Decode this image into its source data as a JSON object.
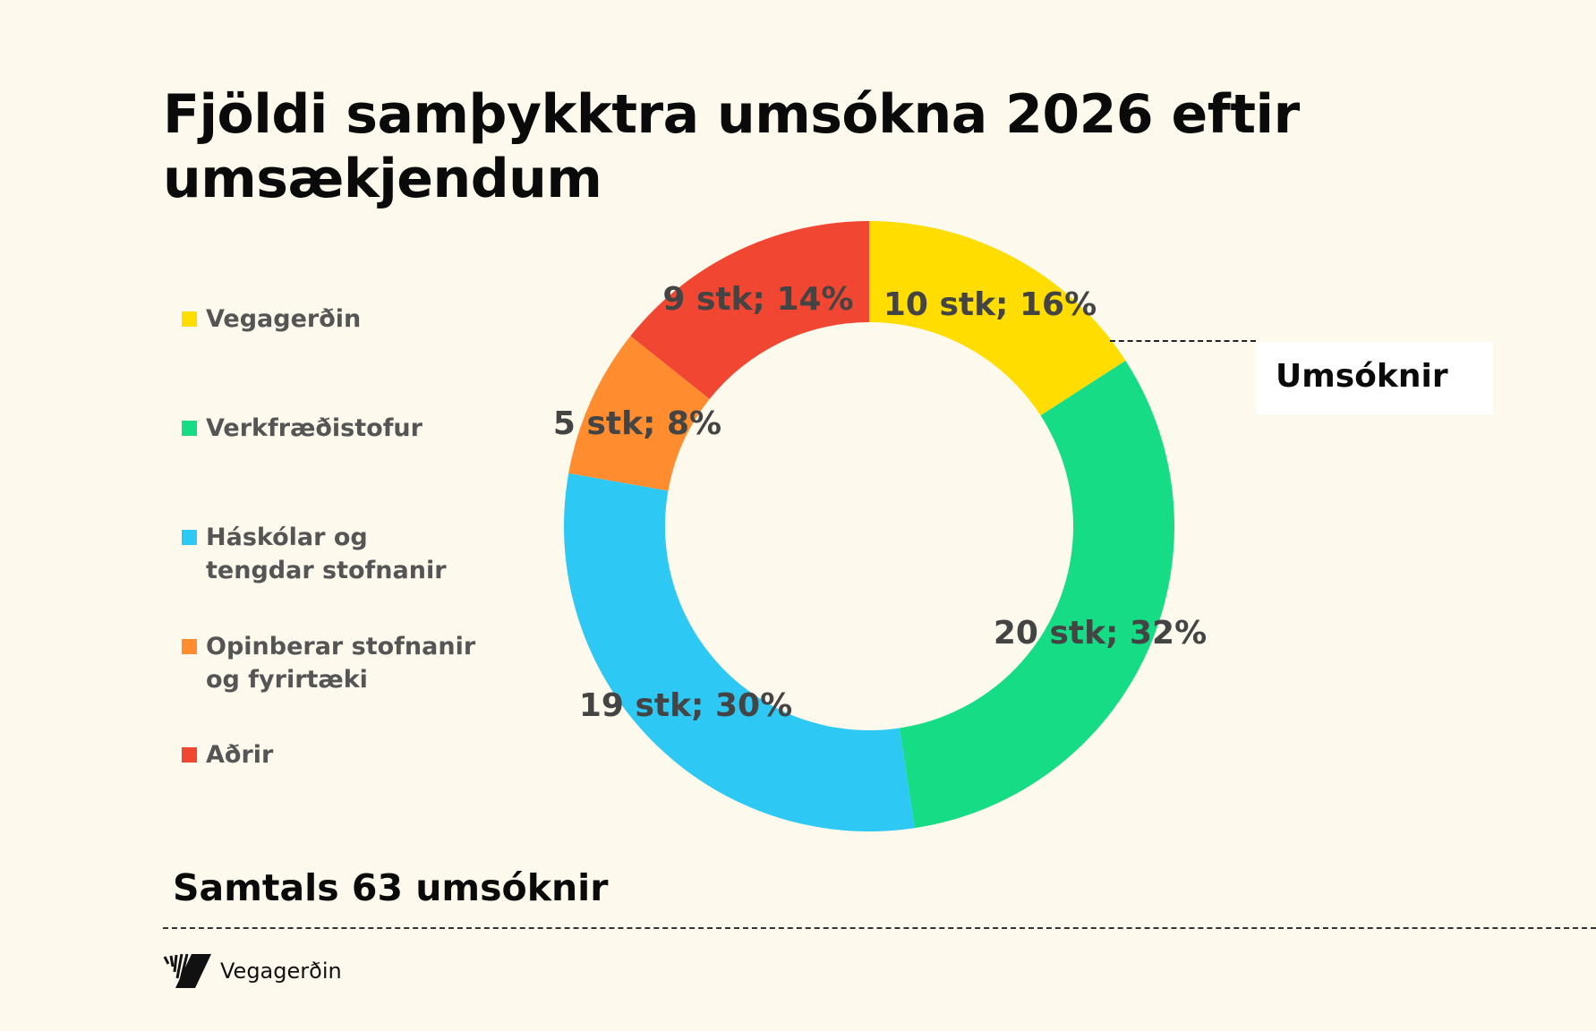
{
  "chart_data": {
    "type": "pie",
    "donut": true,
    "title": "Fjöldi samþykktra umsókna 2026 eftir umsækjendum",
    "categories": [
      "Vegagerðin",
      "Verkfræðistofur",
      "Háskólar og tengdar stofnanir",
      "Opinberar stofnanir og fyrirtæki",
      "Aðrir"
    ],
    "legend_lines": [
      [
        "Vegagerðin"
      ],
      [
        "Verkfræðistofur"
      ],
      [
        "Háskólar og",
        "tengdar stofnanir"
      ],
      [
        "Opinberar stofnanir",
        "og fyrirtæki"
      ],
      [
        "Aðrir"
      ]
    ],
    "values": [
      10,
      20,
      19,
      5,
      9
    ],
    "data_labels": [
      "10 stk; 16%",
      "20 stk; 32%",
      "19 stk; 30%",
      "5 stk; 8%",
      "9 stk; 14%"
    ],
    "colors": [
      "#ffdd00",
      "#16dc85",
      "#2ec8f5",
      "#ff8c2e",
      "#f04632"
    ],
    "legend_placement": "left",
    "series_callout": "Umsóknir"
  },
  "footer": {
    "total": "Samtals 63 umsóknir",
    "logo_text": "Vegagerðin"
  }
}
